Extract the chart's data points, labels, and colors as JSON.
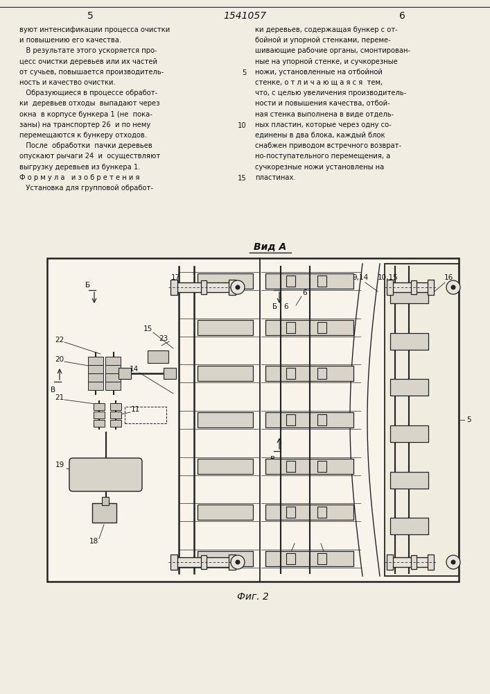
{
  "page_number_left": "5",
  "page_number_center": "1541057",
  "page_number_right": "6",
  "text_left_col": [
    "вуют интенсификации процесса очистки",
    "и повышению его качества.",
    "   В результате этого ускоряется про-",
    "цесс очистки деревьев или их частей",
    "от сучьев, повышается производитель-",
    "ность и качество очистки.",
    "   Образующиеся в процессе обработ-",
    "ки  деревьев отходы  выпадают через",
    "окна  в корпусе бункера 1 (не  пока-",
    "заны) на транспортер 26  и по нему",
    "перемещаются к бункеру отходов.",
    "   После  обработки  пачки деревьев",
    "опускают рычаги 24  и  осуществляют",
    "выгрузку деревьев из бункера 1.",
    "Ф о р м у л а   и з о б р е т е н и я",
    "   Установка для групповой обработ-"
  ],
  "text_right_col": [
    "ки деревьев, содержащая бункер с от-",
    "бойной и упорной стенками, переме-",
    "шивающие рабочие органы, смонтирован-",
    "ные на упорной стенке, и сучкорезные",
    "ножи, установленные на отбойной",
    "стенке, о т л и ч а ю щ а я с я  тем,",
    "что, с целью увеличения производитель-",
    "ности и повышения качества, отбой-",
    "ная стенка выполнена в виде отдель-",
    "ных пластин, которые через одну со-",
    "единены в два блока, каждый блок",
    "снабжен приводом встречного возврат-",
    "но-поступательного перемещения, а",
    "сучкорезные ножи установлены на",
    "пластинах."
  ],
  "right_line_numbers": {
    "4": "5",
    "9": "10",
    "14": "15"
  },
  "view_label": "Вид А",
  "fig_label": "Фиг. 2",
  "bg_color": "#f2ede3",
  "line_color": "#222222",
  "text_color": "#111111"
}
